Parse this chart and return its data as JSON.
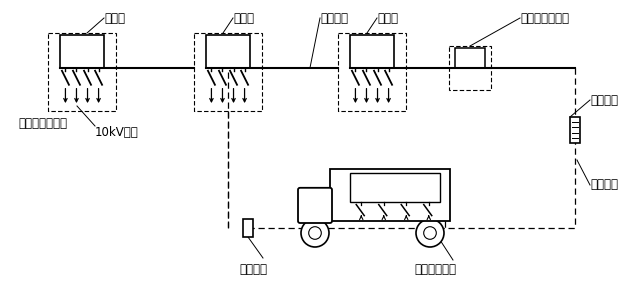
{
  "bg_color": "#ffffff",
  "labels": {
    "ring_cabinet_1": "环网柜",
    "ring_cabinet_2": "环网柜",
    "fault_cable": "故障电缆",
    "ring_cabinet_3": "环网柜",
    "ring_spare_right": "环网柜备用间隔",
    "converter_head": "转换接头",
    "bypass_cable": "旁路电缆",
    "bypass_switch": "旁路开关设备",
    "bypass_head": "旁路接头",
    "ring_spare_left": "环网柜备用间隔",
    "user_10kv": "10kV用户"
  },
  "figsize": [
    6.4,
    2.99
  ],
  "dpi": 100
}
